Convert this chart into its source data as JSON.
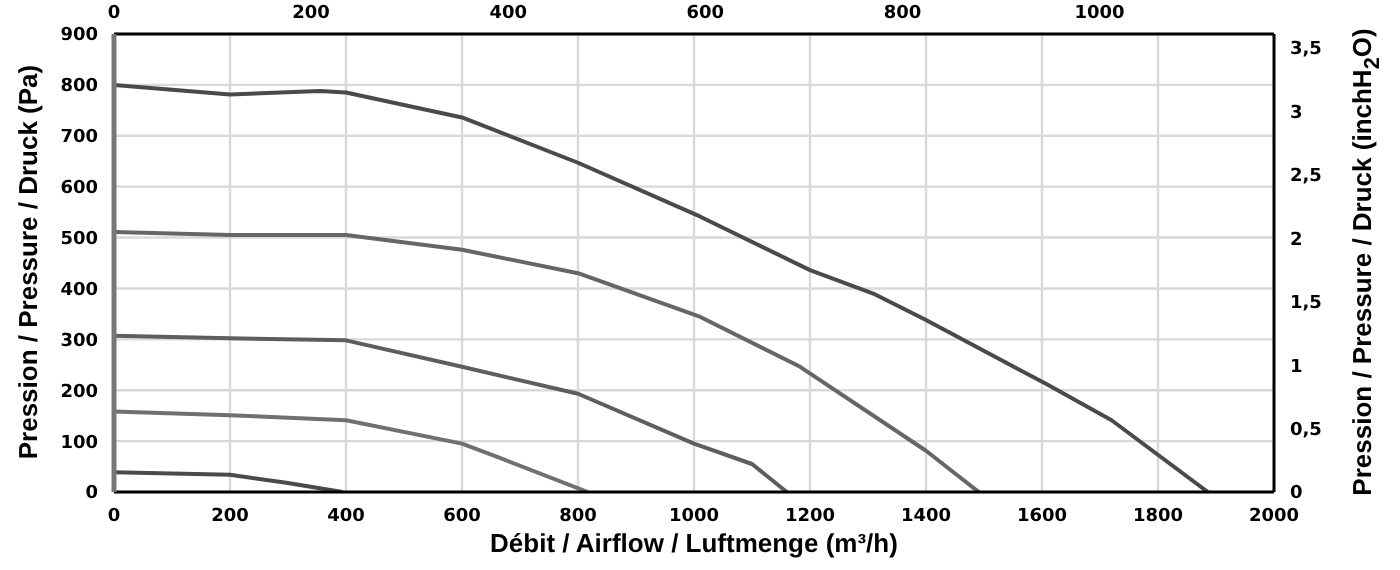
{
  "chart_data": {
    "type": "line",
    "xlabel": "Débit / Airflow / Luftmenge (m³/h)",
    "ylabel": "Pression / Pressure / Druck (Pa)",
    "y2label": "Pression / Pressure / Druck (inchH$_{2}$O)",
    "xlim": [
      0,
      2000
    ],
    "xticks": [
      0,
      200,
      400,
      600,
      800,
      1000,
      1200,
      1400,
      1600,
      1800,
      2000
    ],
    "ylim": [
      0,
      900
    ],
    "yticks": [
      0,
      100,
      200,
      300,
      400,
      500,
      600,
      700,
      800,
      900
    ],
    "x2lim": [
      0,
      1177
    ],
    "x2ticks": [
      0,
      200,
      400,
      600,
      800,
      1000
    ],
    "y2lim": [
      0,
      3.61
    ],
    "y2ticks": [
      0,
      {
        "value": 0.5,
        "label": "0,5"
      },
      1,
      {
        "value": 1.5,
        "label": "1,5"
      },
      2,
      {
        "value": 2.5,
        "label": "2,5"
      },
      3,
      {
        "value": 3.5,
        "label": "3,5"
      }
    ],
    "grid": true,
    "marker": "none",
    "line_style": "solid",
    "series": [
      {
        "color": "#4a4a4a",
        "x": [
          0,
          200,
          355,
          400,
          600,
          800,
          1011,
          1200,
          1309,
          1400,
          1606,
          1720,
          1886
        ],
        "values": [
          800,
          781,
          788,
          785,
          736,
          647,
          541,
          436,
          390,
          338,
          213,
          141,
          0
        ]
      },
      {
        "color": "#666666",
        "x": [
          0,
          200,
          400,
          600,
          800,
          1011,
          1183,
          1400,
          1491
        ],
        "values": [
          511,
          505,
          505,
          476,
          430,
          344,
          246,
          81,
          0
        ]
      },
      {
        "color": "#5e5e5e",
        "x": [
          0,
          200,
          400,
          600,
          800,
          1000,
          1100,
          1160
        ],
        "values": [
          307,
          302,
          298,
          246,
          193,
          95,
          55,
          0
        ]
      },
      {
        "color": "#707070",
        "x": [
          0,
          200,
          400,
          600,
          663,
          817
        ],
        "values": [
          158,
          151,
          141,
          95,
          68,
          0
        ]
      },
      {
        "color": "#4a4a4a",
        "x": [
          0,
          200,
          297,
          394
        ],
        "values": [
          39,
          34,
          18,
          0
        ]
      }
    ]
  }
}
